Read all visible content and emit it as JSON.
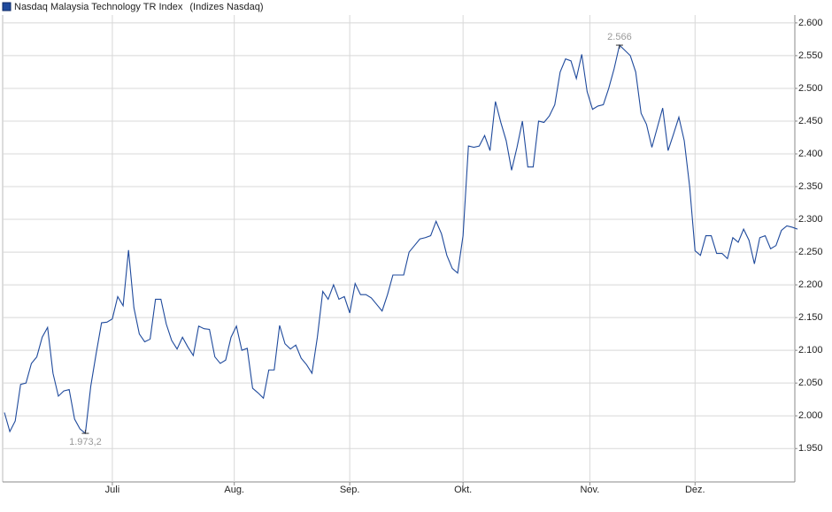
{
  "chart_data": {
    "type": "line",
    "series": [
      {
        "name": "Nasdaq Malaysia Technology TR Index",
        "color": "#1f4a9c",
        "values": [
          2005,
          1976,
          1992,
          2048,
          2050,
          2080,
          2090,
          2120,
          2135,
          2065,
          2030,
          2038,
          2040,
          1995,
          1980,
          1973.2,
          2045,
          2095,
          2142,
          2143,
          2148,
          2182,
          2168,
          2253,
          2165,
          2125,
          2113,
          2117,
          2178,
          2178,
          2140,
          2115,
          2102,
          2120,
          2105,
          2092,
          2137,
          2133,
          2132,
          2090,
          2080,
          2085,
          2120,
          2137,
          2100,
          2103,
          2042,
          2035,
          2027,
          2070,
          2070,
          2138,
          2110,
          2102,
          2108,
          2088,
          2078,
          2065,
          2120,
          2190,
          2178,
          2200,
          2178,
          2182,
          2157,
          2202,
          2185,
          2185,
          2180,
          2170,
          2160,
          2185,
          2215,
          2215,
          2215,
          2250,
          2260,
          2270,
          2272,
          2275,
          2297,
          2278,
          2245,
          2225,
          2218,
          2275,
          2412,
          2410,
          2412,
          2428,
          2405,
          2480,
          2448,
          2420,
          2375,
          2410,
          2450,
          2380,
          2380,
          2450,
          2448,
          2458,
          2475,
          2525,
          2545,
          2542,
          2515,
          2552,
          2495,
          2468,
          2473,
          2475,
          2500,
          2530,
          2566,
          2558,
          2550,
          2525,
          2462,
          2445,
          2410,
          2440,
          2470,
          2405,
          2430,
          2456,
          2420,
          2350,
          2252,
          2245,
          2275,
          2275,
          2248,
          2248,
          2240,
          2272,
          2265,
          2285,
          2268,
          2232,
          2272,
          2275,
          2255,
          2260,
          2283,
          2290,
          2288,
          2285
        ]
      }
    ],
    "subtitle": "(Indizes Nasdaq)",
    "annotations": [
      {
        "x": 114,
        "label": "2.566"
      },
      {
        "x": 15,
        "label": "1.973,2"
      }
    ],
    "xlim": [
      0,
      146
    ],
    "xticks": [
      {
        "value": 20,
        "label": "Juli"
      },
      {
        "value": 42.6,
        "label": "Aug."
      },
      {
        "value": 64,
        "label": "Sep."
      },
      {
        "value": 85,
        "label": "Okt."
      },
      {
        "value": 108.5,
        "label": "Nov."
      },
      {
        "value": 128,
        "label": "Dez."
      }
    ],
    "ylim": [
      1899,
      2612
    ],
    "yticks": [
      {
        "value": 1950,
        "label": "1.950"
      },
      {
        "value": 2000,
        "label": "2.000"
      },
      {
        "value": 2050,
        "label": "2.050"
      },
      {
        "value": 2100,
        "label": "2.100"
      },
      {
        "value": 2150,
        "label": "2.150"
      },
      {
        "value": 2200,
        "label": "2.200"
      },
      {
        "value": 2250,
        "label": "2.250"
      },
      {
        "value": 2300,
        "label": "2.300"
      },
      {
        "value": 2350,
        "label": "2.350"
      },
      {
        "value": 2400,
        "label": "2.400"
      },
      {
        "value": 2450,
        "label": "2.450"
      },
      {
        "value": 2500,
        "label": "2.500"
      },
      {
        "value": 2550,
        "label": "2.550"
      },
      {
        "value": 2600,
        "label": "2.600"
      }
    ],
    "grid": true
  }
}
